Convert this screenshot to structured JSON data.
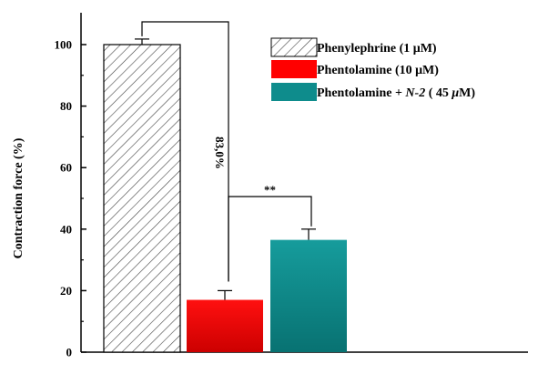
{
  "chart_data": {
    "type": "bar",
    "categories": [
      "Phenylephrine (1 μM)",
      "Phentolamine (10 μM)",
      "Phentolamine + N-2 ( 45 μM)"
    ],
    "values": [
      100,
      17,
      36.5
    ],
    "errors": [
      1.8,
      3,
      3.5
    ],
    "ylabel": "Contraction force (%)",
    "xlabel": "",
    "ylim": [
      0,
      100
    ],
    "yticks": [
      0,
      20,
      40,
      60,
      80,
      100
    ],
    "grid": false,
    "legend_position": "top-right",
    "legend": [
      {
        "label": "Phenylephrine (1 μM)",
        "parts": [
          {
            "text": "Phenylephrine (1 μM)",
            "italic": false
          }
        ],
        "fill": "hatch"
      },
      {
        "label": "Phentolamine (10 μM)",
        "parts": [
          {
            "text": "Phentolamine (10 μM)",
            "italic": false
          }
        ],
        "fill": "#ff0000"
      },
      {
        "label": "Phentolamine + N-2 ( 45 μM)",
        "parts": [
          {
            "text": "Phentolamine + ",
            "italic": false
          },
          {
            "text": "N-2",
            "italic": true
          },
          {
            "text": " ( 45 ",
            "italic": false
          },
          {
            "text": "μ",
            "italic": true
          },
          {
            "text": "M)",
            "italic": false
          }
        ],
        "fill": "#0e8c8c"
      }
    ],
    "colors": {
      "bar1_hatch": "#444444",
      "bar2": "#ff0000",
      "bar3": "#0e8c8c"
    },
    "annotations": [
      {
        "label": "83,0%",
        "from_bar": 0,
        "to_bar": 1
      },
      {
        "label": "**",
        "from_bar": 1,
        "to_bar": 2
      }
    ]
  }
}
